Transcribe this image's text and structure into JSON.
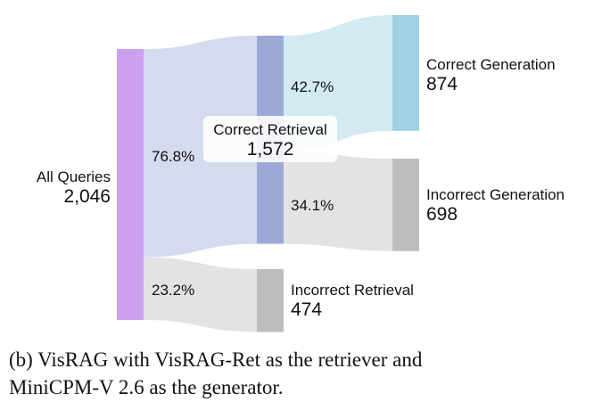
{
  "chart_data": {
    "type": "sankey",
    "nodes": [
      {
        "id": "all",
        "name": "All Queries",
        "value_label": "2,046",
        "value": 2046,
        "color": "#cc9ff0"
      },
      {
        "id": "cr",
        "name": "Correct Retrieval",
        "value_label": "1,572",
        "value": 1572,
        "color": "#9daad6"
      },
      {
        "id": "ir",
        "name": "Incorrect Retrieval",
        "value_label": "474",
        "value": 474,
        "color": "#bdbdbd"
      },
      {
        "id": "cg",
        "name": "Correct Generation",
        "value_label": "874",
        "value": 874,
        "color": "#9fd3e3"
      },
      {
        "id": "ig",
        "name": "Incorrect Generation",
        "value_label": "698",
        "value": 698,
        "color": "#bdbdbd"
      }
    ],
    "links": [
      {
        "source": "all",
        "target": "cr",
        "value": 1572,
        "percent_label": "76.8%",
        "color": "#d4dbef"
      },
      {
        "source": "all",
        "target": "ir",
        "value": 474,
        "percent_label": "23.2%",
        "color": "#e3e3e3"
      },
      {
        "source": "cr",
        "target": "cg",
        "value": 874,
        "percent_label": "42.7%",
        "color": "#d4eaf3"
      },
      {
        "source": "cr",
        "target": "ig",
        "value": 698,
        "percent_label": "34.1%",
        "color": "#e3e3e3"
      }
    ]
  },
  "caption": {
    "line1": "(b) VisRAG with VisRAG-Ret as the retriever and",
    "line2": "MiniCPM-V 2.6 as the generator."
  }
}
